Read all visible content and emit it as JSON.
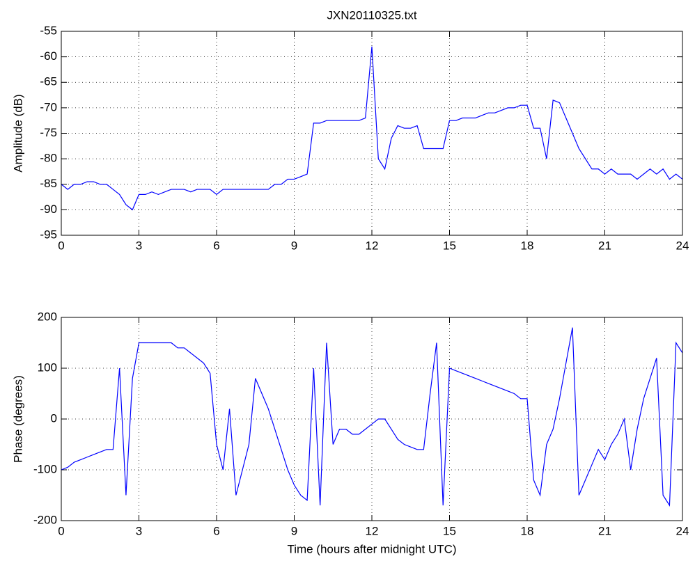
{
  "chart_data": [
    {
      "type": "line",
      "title": "JXN20110325.txt",
      "ylabel": "Amplitude (dB)",
      "x": [
        0,
        0.25,
        0.5,
        0.75,
        1,
        1.25,
        1.5,
        1.75,
        2,
        2.25,
        2.5,
        2.75,
        3,
        3.25,
        3.5,
        3.75,
        4,
        4.25,
        4.5,
        4.75,
        5,
        5.25,
        5.5,
        5.75,
        6,
        6.25,
        6.5,
        6.75,
        7,
        7.25,
        7.5,
        7.75,
        8,
        8.25,
        8.5,
        8.75,
        9,
        9.25,
        9.5,
        9.75,
        10,
        10.25,
        10.5,
        10.75,
        11,
        11.25,
        11.5,
        11.75,
        12,
        12.25,
        12.5,
        12.75,
        13,
        13.25,
        13.5,
        13.75,
        14,
        14.25,
        14.5,
        14.75,
        15,
        15.25,
        15.5,
        15.75,
        16,
        16.25,
        16.5,
        16.75,
        17,
        17.25,
        17.5,
        17.75,
        18,
        18.25,
        18.5,
        18.75,
        19,
        19.25,
        19.5,
        19.75,
        20,
        20.25,
        20.5,
        20.75,
        21,
        21.25,
        21.5,
        21.75,
        22,
        22.25,
        22.5,
        22.75,
        23,
        23.25,
        23.5,
        23.75,
        24
      ],
      "series": [
        {
          "color": "#0000ff",
          "values": [
            -85,
            -86,
            -85,
            -85,
            -84.5,
            -84.5,
            -85,
            -85,
            -86,
            -87,
            -89,
            -90,
            -87,
            -87,
            -86.5,
            -87,
            -86.5,
            -86,
            -86,
            -86,
            -86.5,
            -86,
            -86,
            -86,
            -87,
            -86,
            -86,
            -86,
            -86,
            -86,
            -86,
            -86,
            -86,
            -85,
            -85,
            -84,
            -84,
            -83.5,
            -83,
            -73,
            -73,
            -72.5,
            -72.5,
            -72.5,
            -72.5,
            -72.5,
            -72.5,
            -72,
            -58,
            -80,
            -82,
            -76,
            -73.5,
            -74,
            -74,
            -73.5,
            -78,
            -78,
            -78,
            -78,
            -72.5,
            -72.5,
            -72,
            -72,
            -72,
            -71.5,
            -71,
            -71,
            -70.5,
            -70,
            -70,
            -69.5,
            -69.5,
            -74,
            -74,
            -80,
            -68.5,
            -69,
            -72,
            -75,
            -78,
            -80,
            -82,
            -82,
            -83,
            -82,
            -83,
            -83,
            -83,
            -84,
            -83,
            -82,
            -83,
            -82,
            -84,
            -83,
            -84
          ]
        }
      ],
      "xlim": [
        0,
        24
      ],
      "xticks": [
        0,
        3,
        6,
        9,
        12,
        15,
        18,
        21,
        24
      ],
      "ylim": [
        -95,
        -55
      ],
      "yticks": [
        -95,
        -90,
        -85,
        -80,
        -75,
        -70,
        -65,
        -60,
        -55
      ],
      "grid": true
    },
    {
      "type": "line",
      "ylabel": "Phase (degrees)",
      "xlabel": "Time (hours after midnight UTC)",
      "x": [
        0,
        0.25,
        0.5,
        0.75,
        1,
        1.25,
        1.5,
        1.75,
        2,
        2.25,
        2.5,
        2.75,
        3,
        3.25,
        3.5,
        3.75,
        4,
        4.25,
        4.5,
        4.75,
        5,
        5.25,
        5.5,
        5.75,
        6,
        6.25,
        6.5,
        6.75,
        7,
        7.25,
        7.5,
        7.75,
        8,
        8.25,
        8.5,
        8.75,
        9,
        9.25,
        9.5,
        9.75,
        10,
        10.25,
        10.5,
        10.75,
        11,
        11.25,
        11.5,
        11.75,
        12,
        12.25,
        12.5,
        12.75,
        13,
        13.25,
        13.5,
        13.75,
        14,
        14.25,
        14.5,
        14.75,
        15,
        15.25,
        15.5,
        15.75,
        16,
        16.25,
        16.5,
        16.75,
        17,
        17.25,
        17.5,
        17.75,
        18,
        18.25,
        18.5,
        18.75,
        19,
        19.25,
        19.5,
        19.75,
        20,
        20.25,
        20.5,
        20.75,
        21,
        21.25,
        21.5,
        21.75,
        22,
        22.25,
        22.5,
        22.75,
        23,
        23.25,
        23.5,
        23.75,
        24
      ],
      "series": [
        {
          "color": "#0000ff",
          "values": [
            -100,
            -95,
            -85,
            -80,
            -75,
            -70,
            -65,
            -60,
            -60,
            100,
            -150,
            80,
            150,
            150,
            150,
            150,
            150,
            150,
            140,
            140,
            130,
            120,
            110,
            90,
            -50,
            -100,
            20,
            -150,
            -100,
            -50,
            80,
            50,
            20,
            -20,
            -60,
            -100,
            -130,
            -150,
            -160,
            100,
            -170,
            150,
            -50,
            -20,
            -20,
            -30,
            -30,
            -20,
            -10,
            0,
            0,
            -20,
            -40,
            -50,
            -55,
            -60,
            -60,
            50,
            150,
            -170,
            100,
            95,
            90,
            85,
            80,
            75,
            70,
            65,
            60,
            55,
            50,
            40,
            40,
            -120,
            -150,
            -50,
            -20,
            40,
            110,
            180,
            -150,
            -120,
            -90,
            -60,
            -80,
            -50,
            -30,
            0,
            -100,
            -20,
            40,
            80,
            120,
            -150,
            -170,
            150,
            130
          ]
        }
      ],
      "xlim": [
        0,
        24
      ],
      "xticks": [
        0,
        3,
        6,
        9,
        12,
        15,
        18,
        21,
        24
      ],
      "ylim": [
        -200,
        200
      ],
      "yticks": [
        -200,
        -100,
        0,
        100,
        200
      ],
      "grid": true
    }
  ]
}
